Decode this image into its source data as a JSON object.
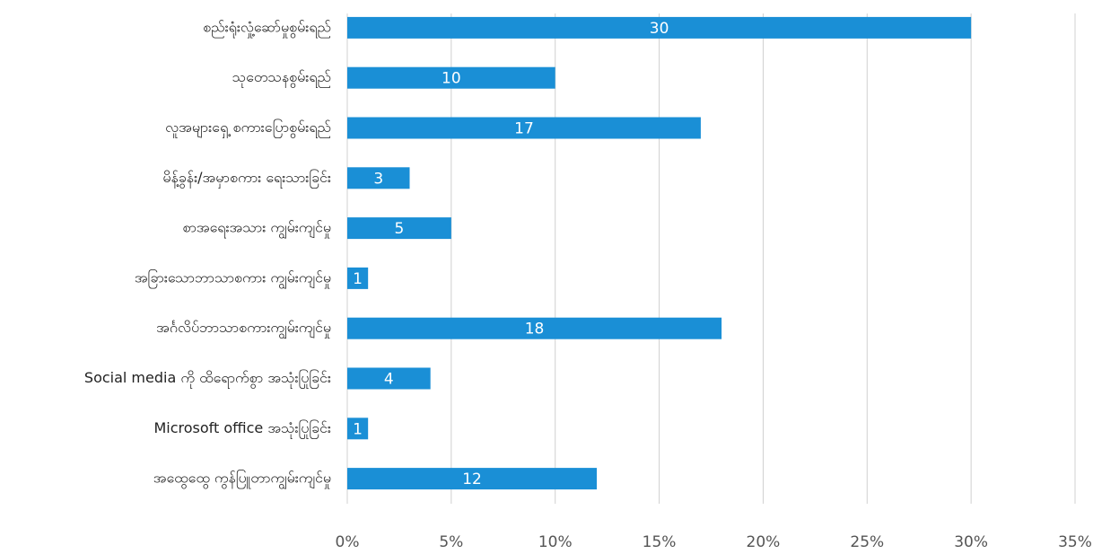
{
  "chart_data": {
    "type": "barh",
    "categories": [
      "စည်းရုံးလှုံ့ဆော်မှုစွမ်းရည်",
      "သုတေသနစွမ်းရည်",
      "လူအများရှေ့ စကားပြောစွမ်းရည်",
      "မိန့်ခွန်း/အမှာစကား ရေးသားခြင်း",
      "စာအရေးအသား ကျွမ်းကျင်မှု",
      "အခြားသောဘာသာစကား ကျွမ်းကျင်မှု",
      "အင်္ဂလိပ်ဘာသာစကားကျွမ်းကျင်မှု",
      "Social media ကို ထိရောက်စွာ အသုံးပြုခြင်း",
      "Microsoft office အသုံးပြုခြင်း",
      "အထွေထွေ ကွန်ပြူတာကျွမ်းကျင်မှု"
    ],
    "values": [
      30,
      10,
      17,
      3,
      5,
      1,
      18,
      4,
      1,
      12
    ],
    "color": "#1a8fd6",
    "xlim": [
      0,
      35
    ],
    "xticks": [
      {
        "value": 0,
        "label": "0%"
      },
      {
        "value": 5,
        "label": "5%"
      },
      {
        "value": 10,
        "label": "10%"
      },
      {
        "value": 15,
        "label": "15%"
      },
      {
        "value": 20,
        "label": "20%"
      },
      {
        "value": 25,
        "label": "25%"
      },
      {
        "value": 30,
        "label": "30%"
      },
      {
        "value": 35,
        "label": "35%"
      }
    ],
    "grid": true
  }
}
